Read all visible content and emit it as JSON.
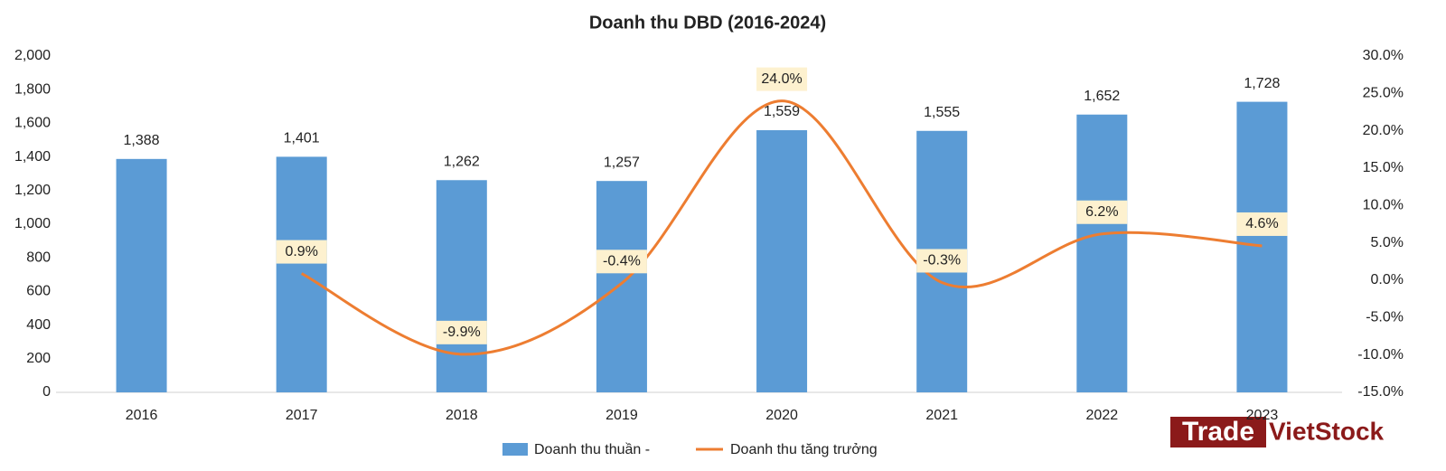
{
  "chart_data": {
    "type": "bar-line",
    "title": "Doanh thu DBD (2016-2024)",
    "categories": [
      "2016",
      "2017",
      "2018",
      "2019",
      "2020",
      "2021",
      "2022",
      "2023"
    ],
    "series": [
      {
        "name": "Doanh thu thuần -",
        "type": "bar",
        "color": "#5b9bd5",
        "values": [
          1388,
          1401,
          1262,
          1257,
          1559,
          1555,
          1652,
          1728
        ],
        "value_labels": [
          "1,388",
          "1,401",
          "1,262",
          "1,257",
          "1,559",
          "1,555",
          "1,652",
          "1,728"
        ]
      },
      {
        "name": "Doanh thu tăng trưởng",
        "type": "line",
        "axis": "y2",
        "color": "#ed7d31",
        "values": [
          null,
          0.9,
          -9.9,
          -0.4,
          24.0,
          -0.3,
          6.2,
          4.6
        ],
        "value_labels": [
          null,
          "0.9%",
          "-9.9%",
          "-0.4%",
          "24.0%",
          "-0.3%",
          "6.2%",
          "4.6%"
        ]
      }
    ],
    "ylim": [
      0,
      2000
    ],
    "yticks": [
      0,
      200,
      400,
      600,
      800,
      {
        "value": 1000,
        "label": "1,000"
      },
      {
        "value": 1200,
        "label": "1,200"
      },
      {
        "value": 1400,
        "label": "1,400"
      },
      {
        "value": 1600,
        "label": "1,600"
      },
      {
        "value": 1800,
        "label": "1,800"
      },
      {
        "value": 2000,
        "label": "2,000"
      }
    ],
    "y2lim": [
      -15,
      30
    ],
    "y2ticks": [
      {
        "value": -15,
        "label": "-15.0%"
      },
      {
        "value": -10,
        "label": "-10.0%"
      },
      {
        "value": -5,
        "label": "-5.0%"
      },
      {
        "value": 0,
        "label": "0.0%"
      },
      {
        "value": 5,
        "label": "5.0%"
      },
      {
        "value": 10,
        "label": "10.0%"
      },
      {
        "value": 15,
        "label": "15.0%"
      },
      {
        "value": 20,
        "label": "20.0%"
      },
      {
        "value": 25,
        "label": "25.0%"
      },
      {
        "value": 30,
        "label": "30.0%"
      }
    ],
    "legend": "bottom",
    "watermark": [
      "Trade",
      "VietStock"
    ]
  }
}
